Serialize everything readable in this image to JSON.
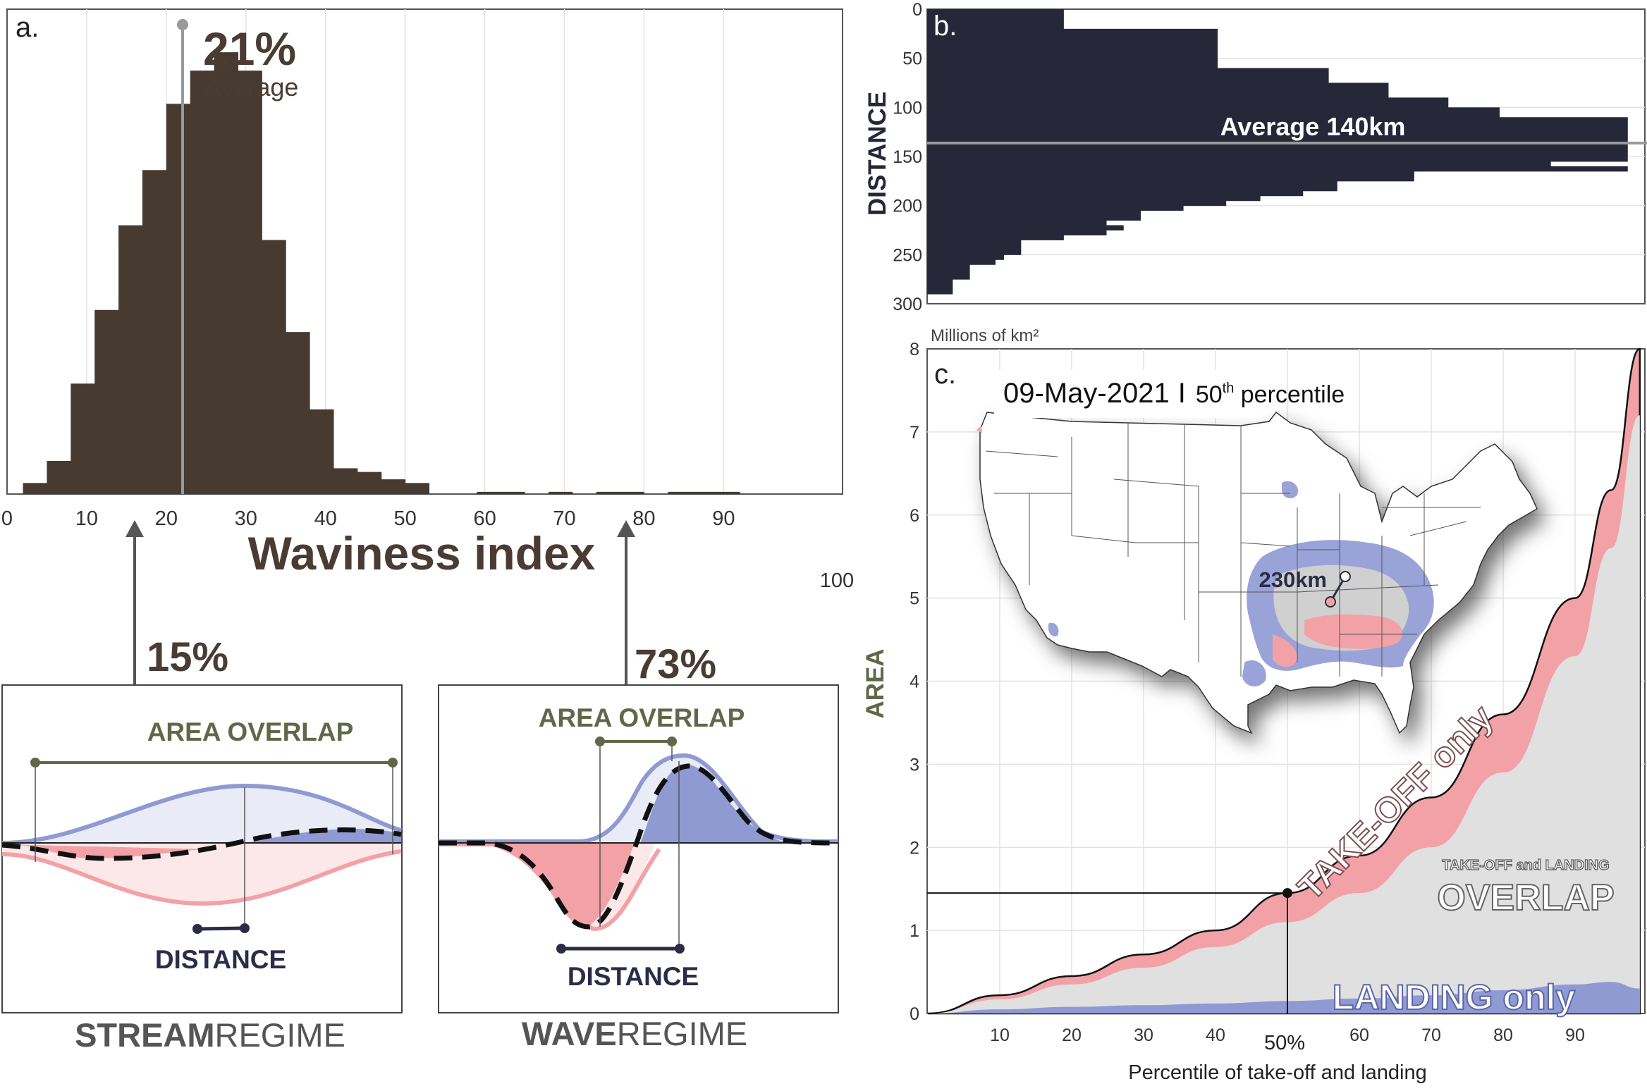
{
  "panel_a": {
    "label": "a.",
    "avg_pct": "21%",
    "avg_label": "Average",
    "xlabel": "Waviness index",
    "extra_tick": "100",
    "stream_pct": "15%",
    "wave_pct": "73%",
    "stream_box": {
      "area_label": "AREA OVERLAP",
      "distance_label": "DISTANCE",
      "regime_bold": "STREAM",
      "regime_light": "REGIME"
    },
    "wave_box": {
      "area_label": "AREA OVERLAP",
      "distance_label": "DISTANCE",
      "regime_bold": "WAVE",
      "regime_light": "REGIME"
    }
  },
  "panel_b": {
    "label": "b.",
    "ylabel": "DISTANCE",
    "avg_label": "Average 140km"
  },
  "panel_c": {
    "label": "c.",
    "units": "Millions of km²",
    "ylabel": "AREA",
    "xlabel": "Percentile of take-off and landing",
    "date": "09-May-2021",
    "sep": "I",
    "pct_prefix": "50",
    "pct_sup": "th",
    "pct_suffix": " percentile",
    "marker_label": "50%",
    "map_distance_label": "230km",
    "takeoff_label": "TAKE-OFF only",
    "overlap_small": "TAKE-OFF and LANDING",
    "overlap_big": "OVERLAP",
    "landing_label": "LANDING only"
  },
  "chart_data": [
    {
      "type": "bar",
      "panel": "a",
      "xlabel": "Waviness index",
      "xlim": [
        0,
        100
      ],
      "xticks": [
        0,
        10,
        20,
        30,
        40,
        50,
        60,
        70,
        80,
        90
      ],
      "bin_width": 3,
      "bin_edges_start": 2,
      "values": [
        3,
        9,
        30,
        50,
        73,
        88,
        106,
        115,
        120,
        115,
        69,
        44,
        23,
        7,
        6,
        4,
        3,
        0,
        0,
        0.6,
        0.6,
        0,
        0.6,
        0,
        0.6,
        0.6,
        0,
        0.6,
        0.6,
        0.6,
        0,
        0,
        0,
        0,
        0
      ],
      "average": 21,
      "average_label": "21%",
      "annotations": [
        {
          "x": 15,
          "label": "15%"
        },
        {
          "x": 75,
          "label": "73%"
        }
      ],
      "color": "#463a31"
    },
    {
      "type": "bar",
      "panel": "b",
      "orientation": "horizontal",
      "ylabel": "DISTANCE",
      "ylim": [
        0,
        300
      ],
      "yticks": [
        0,
        50,
        100,
        150,
        200,
        250,
        300
      ],
      "bin_size": 5,
      "values": [
        1.6,
        1.6,
        1.6,
        1.6,
        3.4,
        3.4,
        3.4,
        3.4,
        3.4,
        3.4,
        3.4,
        3.4,
        4.7,
        4.7,
        4.7,
        5.4,
        5.4,
        5.4,
        6.1,
        6.1,
        6.7,
        6.7,
        8.2,
        8.2,
        8.2,
        8.2,
        8.2,
        8.2,
        8.2,
        8.2,
        8.2,
        7.3,
        8.2,
        5.7,
        5.7,
        4.8,
        4.8,
        4.4,
        3.9,
        3.5,
        3.0,
        2.5,
        2.5,
        2.1,
        2.3,
        2.1,
        1.6,
        1.1,
        1.1,
        1.1,
        0.9,
        0.8,
        0.5,
        0.5,
        0.5,
        0.3,
        0.3,
        0.3
      ],
      "average": 140,
      "average_label": "Average 140km",
      "color": "#262839"
    },
    {
      "type": "area",
      "panel": "c",
      "xlabel": "Percentile of take-off and landing",
      "ylabel": "AREA",
      "units": "Millions of km²",
      "xlim": [
        0,
        100
      ],
      "ylim": [
        0,
        8
      ],
      "xticks": [
        10,
        20,
        30,
        40,
        50,
        60,
        70,
        80,
        90
      ],
      "yticks": [
        0,
        1,
        2,
        3,
        4,
        5,
        6,
        7,
        8
      ],
      "x": [
        0,
        10,
        20,
        30,
        40,
        50,
        60,
        70,
        80,
        90,
        95,
        99
      ],
      "series": [
        {
          "name": "TAKE-OFF only",
          "values": [
            0,
            0.22,
            0.45,
            0.71,
            1.0,
            1.45,
            1.9,
            2.6,
            3.6,
            5.0,
            6.3,
            8.0
          ],
          "color": "#f2a2a6"
        },
        {
          "name": "OVERLAP",
          "values": [
            0,
            0.17,
            0.35,
            0.55,
            0.8,
            1.1,
            1.45,
            2.0,
            2.9,
            4.3,
            5.6,
            7.2
          ],
          "color": "#e0e0e0"
        },
        {
          "name": "LANDING only",
          "values": [
            0,
            0.05,
            0.08,
            0.1,
            0.12,
            0.15,
            0.18,
            0.22,
            0.28,
            0.35,
            0.38,
            0.3
          ],
          "color": "#8f9ad3"
        }
      ],
      "marker": {
        "x": 50,
        "y": 1.45,
        "label": "50%"
      }
    }
  ]
}
